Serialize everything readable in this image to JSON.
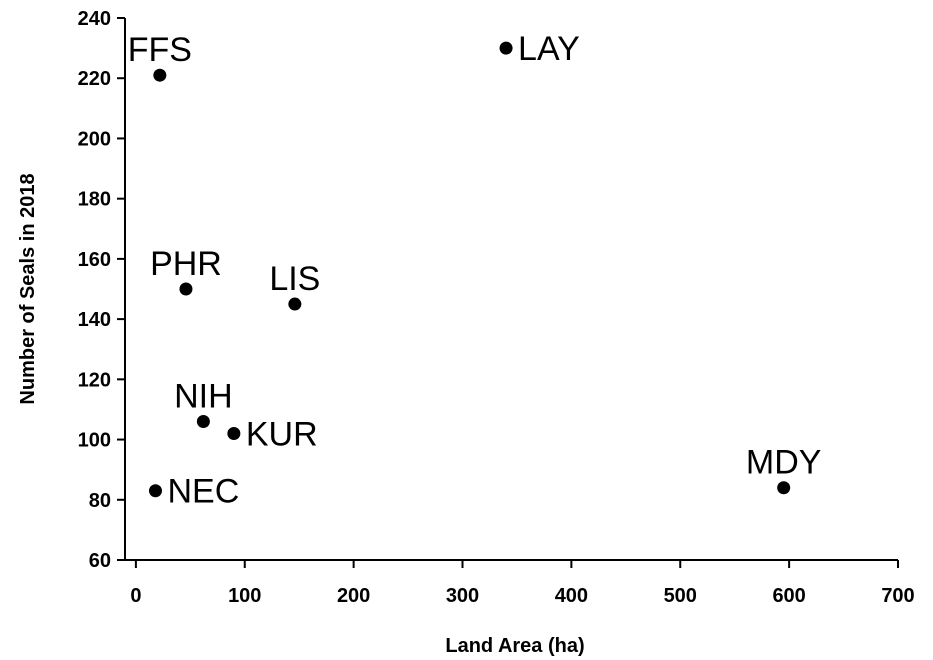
{
  "chart_data": {
    "type": "scatter",
    "title": "",
    "xlabel": "Land Area (ha)",
    "ylabel": "Number of Seals in 2018",
    "xlim": [
      -10,
      700
    ],
    "ylim": [
      60,
      240
    ],
    "xticks": [
      0,
      100,
      200,
      300,
      400,
      500,
      600,
      700
    ],
    "yticks": [
      60,
      80,
      100,
      120,
      140,
      160,
      180,
      200,
      220,
      240
    ],
    "grid": false,
    "legend": "none",
    "marker_color": "#000000",
    "points": [
      {
        "label": "FFS",
        "x": 22,
        "y": 221,
        "label_pos": "above"
      },
      {
        "label": "LAY",
        "x": 340,
        "y": 230,
        "label_pos": "right"
      },
      {
        "label": "PHR",
        "x": 46,
        "y": 150,
        "label_pos": "above"
      },
      {
        "label": "LIS",
        "x": 146,
        "y": 145,
        "label_pos": "above"
      },
      {
        "label": "NIH",
        "x": 62,
        "y": 106,
        "label_pos": "above"
      },
      {
        "label": "KUR",
        "x": 90,
        "y": 102,
        "label_pos": "right"
      },
      {
        "label": "NEC",
        "x": 18,
        "y": 83,
        "label_pos": "right"
      },
      {
        "label": "MDY",
        "x": 595,
        "y": 84,
        "label_pos": "above"
      }
    ]
  }
}
